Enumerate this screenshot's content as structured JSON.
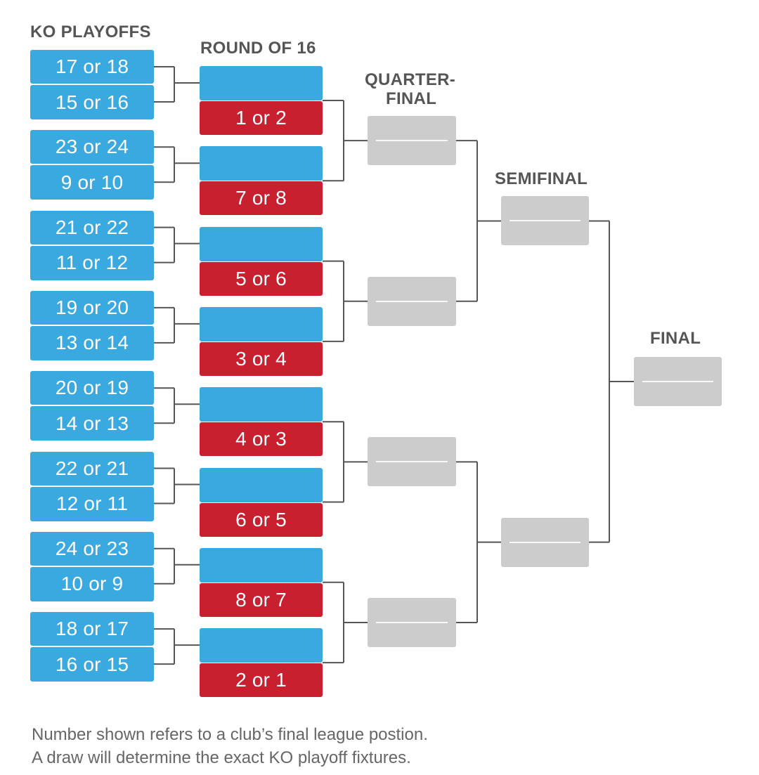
{
  "headers": {
    "ko_playoffs": "KO PLAYOFFS",
    "round_of_16": "ROUND OF 16",
    "quarter_final_1": "QUARTER-",
    "quarter_final_2": "FINAL",
    "semifinal": "SEMIFINAL",
    "final": "FINAL"
  },
  "ko_playoffs": [
    {
      "top": "17 or 18",
      "bottom": "15 or 16"
    },
    {
      "top": "23 or 24",
      "bottom": "9 or 10"
    },
    {
      "top": "21 or 22",
      "bottom": "11 or 12"
    },
    {
      "top": "19 or 20",
      "bottom": "13 or 14"
    },
    {
      "top": "20 or 19",
      "bottom": "14 or 13"
    },
    {
      "top": "22 or 21",
      "bottom": "12 or 11"
    },
    {
      "top": "24 or 23",
      "bottom": "10 or 9"
    },
    {
      "top": "18 or 17",
      "bottom": "16 or 15"
    }
  ],
  "round_of_16_seeds": [
    "1 or 2",
    "7 or 8",
    "5 or 6",
    "3 or 4",
    "4 or 3",
    "6 or 5",
    "8 or 7",
    "2 or 1"
  ],
  "footnote": {
    "line1": "Number shown refers to a club’s final league postion.",
    "line2": "A draw will determine the exact KO playoff fixtures."
  },
  "colors": {
    "ko_box": "#3aa9e0",
    "seed_box": "#c8202f",
    "tbd_box": "#cccccc",
    "connector": "#555555"
  }
}
